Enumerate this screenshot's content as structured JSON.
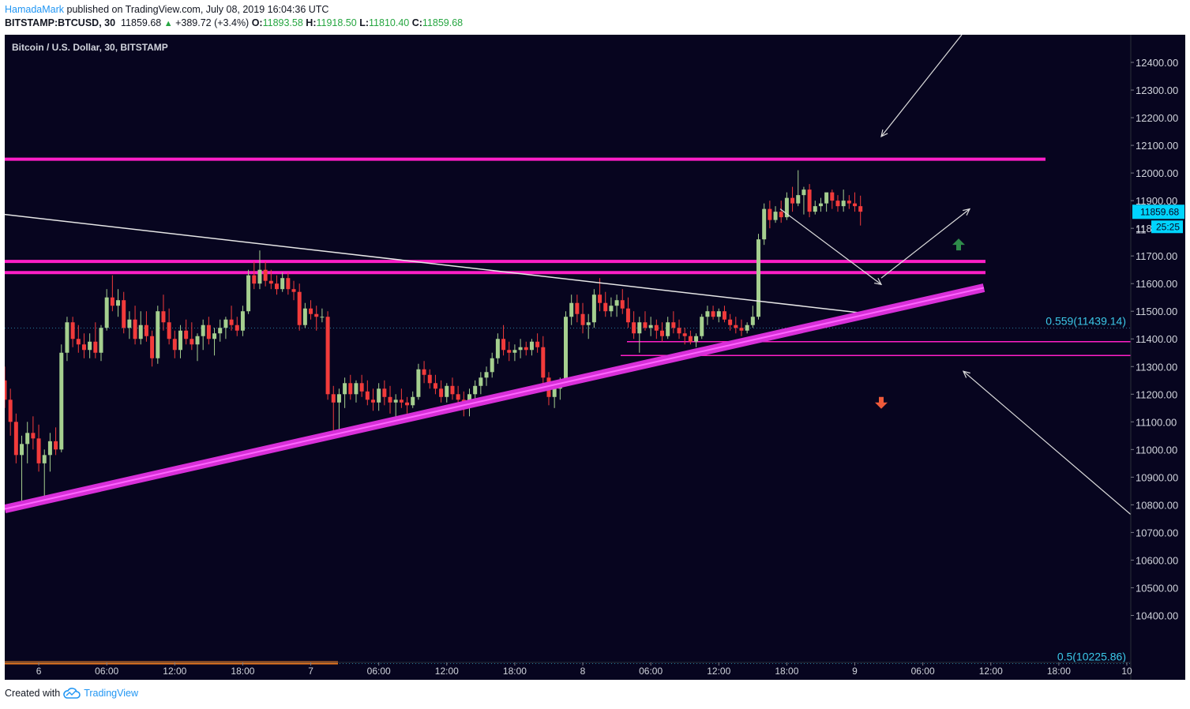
{
  "header": {
    "author": "HamadaMark",
    "published": "published on TradingView.com, July 08, 2019 16:04:36 UTC",
    "symbol": "BITSTAMP:BTCUSD, 30",
    "last": "11859.68",
    "change": "+389.72 (+3.4%)",
    "o_label": "O:",
    "o": "11893.58",
    "h_label": "H:",
    "h": "11918.50",
    "l_label": "L:",
    "l": "11810.40",
    "c_label": "C:",
    "c": "11859.68"
  },
  "legend": "Bitcoin / U.S. Dollar, 30, BITSTAMP",
  "footer": {
    "created": "Created with",
    "brand": "TradingView"
  },
  "colors": {
    "background": "#07051f",
    "up": "#a5cf8f",
    "down": "#f23b3b",
    "level_line": "#ff1fc7",
    "trendline": "#d82fd8",
    "accent_label": "#00d5ff",
    "fib_label": "#3bc8e8",
    "green_arrow": "#2e8b4a",
    "red_arrow": "#ee5a3a"
  },
  "chart_data": {
    "type": "candlestick",
    "title": "Bitcoin / U.S. Dollar, 30, BITSTAMP",
    "ylim": [
      10230,
      12500
    ],
    "y_ticks": [
      10400,
      10500,
      10600,
      10700,
      10800,
      10900,
      11000,
      11100,
      11200,
      11300,
      11400,
      11500,
      11600,
      11700,
      11800,
      11900,
      12000,
      12100,
      12200,
      12300,
      12400
    ],
    "y_tick_labels": [
      "10400.00",
      "10500.00",
      "10600.00",
      "10700.00",
      "10800.00",
      "10900.00",
      "11000.00",
      "11100.00",
      "11200.00",
      "11300.00",
      "11400.00",
      "11500.00",
      "11600.00",
      "11700.00",
      "11800.00",
      "11900.00",
      "12000.00",
      "12100.00",
      "12200.00",
      "12300.00",
      "12400.00"
    ],
    "time_range": [
      "2019-07-05 21:00",
      "2019-07-10 00:00"
    ],
    "x_ticks": [
      {
        "t": "2019-07-06 00:00",
        "label": "6"
      },
      {
        "t": "2019-07-06 06:00",
        "label": "06:00"
      },
      {
        "t": "2019-07-06 12:00",
        "label": "12:00"
      },
      {
        "t": "2019-07-06 18:00",
        "label": "18:00"
      },
      {
        "t": "2019-07-07 00:00",
        "label": "7"
      },
      {
        "t": "2019-07-07 06:00",
        "label": "06:00"
      },
      {
        "t": "2019-07-07 12:00",
        "label": "12:00"
      },
      {
        "t": "2019-07-07 18:00",
        "label": "18:00"
      },
      {
        "t": "2019-07-08 00:00",
        "label": "8"
      },
      {
        "t": "2019-07-08 06:00",
        "label": "06:00"
      },
      {
        "t": "2019-07-08 12:00",
        "label": "12:00"
      },
      {
        "t": "2019-07-08 18:00",
        "label": "18:00"
      },
      {
        "t": "2019-07-09 00:00",
        "label": "9"
      },
      {
        "t": "2019-07-09 06:00",
        "label": "06:00"
      },
      {
        "t": "2019-07-09 12:00",
        "label": "12:00"
      },
      {
        "t": "2019-07-09 18:00",
        "label": "18:00"
      },
      {
        "t": "2019-07-10 00:00",
        "label": "10"
      }
    ],
    "candles_start": "2019-07-05 21:00",
    "candle_interval_minutes": 30,
    "candles": [
      [
        11250,
        11300,
        11150,
        11180
      ],
      [
        11180,
        11220,
        11050,
        11100
      ],
      [
        11100,
        11130,
        10950,
        10980
      ],
      [
        10980,
        11050,
        10800,
        11020
      ],
      [
        11020,
        11100,
        10950,
        11060
      ],
      [
        11060,
        11120,
        11000,
        11040
      ],
      [
        11040,
        11090,
        10920,
        10950
      ],
      [
        10950,
        11000,
        10830,
        10980
      ],
      [
        10980,
        11060,
        10920,
        11030
      ],
      [
        11030,
        11080,
        10980,
        11000
      ],
      [
        11000,
        11380,
        10990,
        11350
      ],
      [
        11350,
        11480,
        11320,
        11460
      ],
      [
        11460,
        11480,
        11370,
        11400
      ],
      [
        11400,
        11450,
        11350,
        11380
      ],
      [
        11380,
        11420,
        11330,
        11360
      ],
      [
        11360,
        11420,
        11330,
        11390
      ],
      [
        11390,
        11460,
        11330,
        11350
      ],
      [
        11350,
        11450,
        11320,
        11440
      ],
      [
        11440,
        11580,
        11430,
        11550
      ],
      [
        11550,
        11630,
        11500,
        11520
      ],
      [
        11520,
        11580,
        11480,
        11540
      ],
      [
        11540,
        11570,
        11420,
        11440
      ],
      [
        11440,
        11500,
        11400,
        11470
      ],
      [
        11470,
        11520,
        11380,
        11400
      ],
      [
        11400,
        11500,
        11380,
        11450
      ],
      [
        11450,
        11500,
        11390,
        11410
      ],
      [
        11410,
        11430,
        11300,
        11330
      ],
      [
        11330,
        11520,
        11310,
        11500
      ],
      [
        11500,
        11560,
        11430,
        11460
      ],
      [
        11460,
        11510,
        11380,
        11400
      ],
      [
        11400,
        11430,
        11330,
        11360
      ],
      [
        11360,
        11450,
        11330,
        11430
      ],
      [
        11430,
        11470,
        11380,
        11400
      ],
      [
        11400,
        11460,
        11360,
        11380
      ],
      [
        11380,
        11420,
        11320,
        11410
      ],
      [
        11410,
        11470,
        11360,
        11450
      ],
      [
        11450,
        11480,
        11380,
        11400
      ],
      [
        11400,
        11440,
        11340,
        11420
      ],
      [
        11420,
        11470,
        11390,
        11440
      ],
      [
        11440,
        11480,
        11400,
        11470
      ],
      [
        11470,
        11520,
        11430,
        11450
      ],
      [
        11450,
        11480,
        11410,
        11430
      ],
      [
        11430,
        11520,
        11410,
        11500
      ],
      [
        11500,
        11650,
        11490,
        11630
      ],
      [
        11630,
        11680,
        11580,
        11600
      ],
      [
        11600,
        11720,
        11580,
        11650
      ],
      [
        11650,
        11680,
        11590,
        11610
      ],
      [
        11610,
        11650,
        11580,
        11600
      ],
      [
        11600,
        11630,
        11560,
        11580
      ],
      [
        11580,
        11640,
        11570,
        11620
      ],
      [
        11620,
        11640,
        11560,
        11580
      ],
      [
        11580,
        11610,
        11540,
        11570
      ],
      [
        11570,
        11600,
        11430,
        11450
      ],
      [
        11450,
        11530,
        11440,
        11510
      ],
      [
        11510,
        11540,
        11470,
        11490
      ],
      [
        11490,
        11520,
        11430,
        11480
      ],
      [
        11480,
        11510,
        11460,
        11480
      ],
      [
        11480,
        11500,
        11180,
        11200
      ],
      [
        11200,
        11230,
        11050,
        11170
      ],
      [
        11170,
        11220,
        11060,
        11200
      ],
      [
        11200,
        11260,
        11150,
        11240
      ],
      [
        11240,
        11270,
        11180,
        11200
      ],
      [
        11200,
        11250,
        11170,
        11240
      ],
      [
        11240,
        11270,
        11190,
        11210
      ],
      [
        11210,
        11250,
        11160,
        11180
      ],
      [
        11180,
        11220,
        11140,
        11170
      ],
      [
        11170,
        11240,
        11140,
        11220
      ],
      [
        11220,
        11250,
        11160,
        11190
      ],
      [
        11190,
        11230,
        11130,
        11170
      ],
      [
        11170,
        11200,
        11090,
        11180
      ],
      [
        11180,
        11220,
        11150,
        11170
      ],
      [
        11170,
        11190,
        11130,
        11160
      ],
      [
        11160,
        11210,
        11150,
        11190
      ],
      [
        11190,
        11310,
        11180,
        11290
      ],
      [
        11290,
        11320,
        11240,
        11270
      ],
      [
        11270,
        11290,
        11220,
        11240
      ],
      [
        11240,
        11270,
        11200,
        11220
      ],
      [
        11220,
        11250,
        11170,
        11190
      ],
      [
        11190,
        11240,
        11170,
        11230
      ],
      [
        11230,
        11260,
        11180,
        11200
      ],
      [
        11200,
        11230,
        11150,
        11180
      ],
      [
        11180,
        11210,
        11120,
        11160
      ],
      [
        11160,
        11220,
        11120,
        11200
      ],
      [
        11200,
        11250,
        11160,
        11230
      ],
      [
        11230,
        11280,
        11200,
        11260
      ],
      [
        11260,
        11300,
        11230,
        11280
      ],
      [
        11280,
        11350,
        11260,
        11330
      ],
      [
        11330,
        11420,
        11310,
        11400
      ],
      [
        11400,
        11450,
        11340,
        11360
      ],
      [
        11360,
        11390,
        11320,
        11350
      ],
      [
        11350,
        11380,
        11320,
        11360
      ],
      [
        11360,
        11400,
        11330,
        11370
      ],
      [
        11370,
        11390,
        11340,
        11360
      ],
      [
        11360,
        11400,
        11340,
        11390
      ],
      [
        11390,
        11420,
        11350,
        11370
      ],
      [
        11370,
        11410,
        11240,
        11260
      ],
      [
        11260,
        11280,
        11160,
        11190
      ],
      [
        11190,
        11240,
        11150,
        11220
      ],
      [
        11220,
        11260,
        11180,
        11250
      ],
      [
        11250,
        11500,
        11230,
        11480
      ],
      [
        11480,
        11560,
        11450,
        11530
      ],
      [
        11530,
        11560,
        11460,
        11490
      ],
      [
        11490,
        11530,
        11420,
        11450
      ],
      [
        11450,
        11490,
        11400,
        11460
      ],
      [
        11460,
        11580,
        11440,
        11560
      ],
      [
        11560,
        11620,
        11500,
        11530
      ],
      [
        11530,
        11570,
        11480,
        11500
      ],
      [
        11500,
        11550,
        11480,
        11520
      ],
      [
        11520,
        11560,
        11480,
        11540
      ],
      [
        11540,
        11580,
        11490,
        11510
      ],
      [
        11510,
        11550,
        11440,
        11460
      ],
      [
        11460,
        11500,
        11400,
        11420
      ],
      [
        11420,
        11480,
        11350,
        11460
      ],
      [
        11460,
        11500,
        11430,
        11440
      ],
      [
        11440,
        11480,
        11410,
        11450
      ],
      [
        11450,
        11470,
        11400,
        11430
      ],
      [
        11430,
        11460,
        11390,
        11410
      ],
      [
        11410,
        11480,
        11400,
        11460
      ],
      [
        11460,
        11500,
        11420,
        11440
      ],
      [
        11440,
        11470,
        11400,
        11420
      ],
      [
        11420,
        11440,
        11380,
        11410
      ],
      [
        11410,
        11430,
        11380,
        11390
      ],
      [
        11390,
        11420,
        11370,
        11410
      ],
      [
        11410,
        11490,
        11400,
        11480
      ],
      [
        11480,
        11520,
        11450,
        11500
      ],
      [
        11500,
        11520,
        11470,
        11480
      ],
      [
        11480,
        11510,
        11460,
        11500
      ],
      [
        11500,
        11520,
        11460,
        11470
      ],
      [
        11470,
        11490,
        11430,
        11450
      ],
      [
        11450,
        11480,
        11420,
        11440
      ],
      [
        11440,
        11470,
        11410,
        11430
      ],
      [
        11430,
        11460,
        11420,
        11450
      ],
      [
        11450,
        11520,
        11440,
        11480
      ],
      [
        11480,
        11780,
        11470,
        11760
      ],
      [
        11760,
        11890,
        11740,
        11870
      ],
      [
        11870,
        11900,
        11800,
        11830
      ],
      [
        11830,
        11880,
        11820,
        11860
      ],
      [
        11860,
        11900,
        11820,
        11840
      ],
      [
        11840,
        11930,
        11830,
        11910
      ],
      [
        11910,
        11950,
        11860,
        11890
      ],
      [
        11890,
        12010,
        11880,
        11920
      ],
      [
        11920,
        11950,
        11850,
        11940
      ],
      [
        11940,
        11960,
        11840,
        11860
      ],
      [
        11860,
        11900,
        11850,
        11880
      ],
      [
        11880,
        11910,
        11860,
        11890
      ],
      [
        11890,
        11920,
        11860,
        11930
      ],
      [
        11930,
        11940,
        11870,
        11900
      ],
      [
        11900,
        11920,
        11860,
        11880
      ],
      [
        11880,
        11940,
        11860,
        11900
      ],
      [
        11900,
        11920,
        11870,
        11890
      ],
      [
        11890,
        11930,
        11860,
        11880
      ],
      [
        11880,
        11918,
        11810,
        11860
      ]
    ],
    "horizontal_levels": [
      12050,
      11680,
      11640
    ],
    "short_levels": [
      11390,
      11340
    ],
    "fib_levels": [
      {
        "label": "0.559(11439.14)",
        "value": 11439.14
      },
      {
        "label": "0.5(10225.86)",
        "value": 10225.86
      }
    ],
    "current_price_label": "11859.68",
    "countdown_label": "25:25",
    "partial_axis_label": "11"
  }
}
